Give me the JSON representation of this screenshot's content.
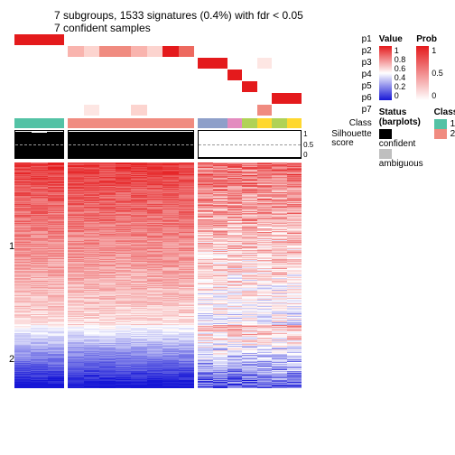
{
  "title_line1": "7 subgroups, 1533 signatures (0.4%) with fdr < 0.05",
  "title_line2": "7 confident samples",
  "group_widths": [
    55,
    140,
    115
  ],
  "group_cols": [
    3,
    8,
    7
  ],
  "p_rows": [
    {
      "label": "p1",
      "cells": [
        [
          "#e41a1c",
          "#e41a1c",
          "#e41a1c"
        ],
        [
          "#ffffff",
          "#ffffff",
          "#ffffff",
          "#ffffff",
          "#ffffff",
          "#ffffff",
          "#ffffff",
          "#ffffff"
        ],
        [
          "#ffffff",
          "#ffffff",
          "#ffffff",
          "#ffffff",
          "#ffffff",
          "#ffffff",
          "#ffffff"
        ]
      ]
    },
    {
      "label": "p2",
      "cells": [
        [
          "#ffffff",
          "#ffffff",
          "#ffffff"
        ],
        [
          "#f9b4ae",
          "#fcd4cf",
          "#f08b80",
          "#f08b80",
          "#f9b4ae",
          "#fcd4cf",
          "#e41a1c",
          "#ed695f"
        ],
        [
          "#ffffff",
          "#ffffff",
          "#ffffff",
          "#ffffff",
          "#ffffff",
          "#ffffff",
          "#ffffff"
        ]
      ]
    },
    {
      "label": "p3",
      "cells": [
        [
          "#ffffff",
          "#ffffff",
          "#ffffff"
        ],
        [
          "#ffffff",
          "#ffffff",
          "#ffffff",
          "#ffffff",
          "#ffffff",
          "#ffffff",
          "#ffffff",
          "#ffffff"
        ],
        [
          "#e41a1c",
          "#e41a1c",
          "#ffffff",
          "#ffffff",
          "#fde6e3",
          "#ffffff",
          "#ffffff"
        ]
      ]
    },
    {
      "label": "p4",
      "cells": [
        [
          "#ffffff",
          "#ffffff",
          "#ffffff"
        ],
        [
          "#ffffff",
          "#ffffff",
          "#ffffff",
          "#ffffff",
          "#ffffff",
          "#ffffff",
          "#ffffff",
          "#ffffff"
        ],
        [
          "#ffffff",
          "#ffffff",
          "#e41a1c",
          "#ffffff",
          "#ffffff",
          "#ffffff",
          "#ffffff"
        ]
      ]
    },
    {
      "label": "p5",
      "cells": [
        [
          "#ffffff",
          "#ffffff",
          "#ffffff"
        ],
        [
          "#ffffff",
          "#ffffff",
          "#ffffff",
          "#ffffff",
          "#ffffff",
          "#ffffff",
          "#ffffff",
          "#ffffff"
        ],
        [
          "#ffffff",
          "#ffffff",
          "#ffffff",
          "#e41a1c",
          "#ffffff",
          "#ffffff",
          "#ffffff"
        ]
      ]
    },
    {
      "label": "p6",
      "cells": [
        [
          "#ffffff",
          "#ffffff",
          "#ffffff"
        ],
        [
          "#ffffff",
          "#ffffff",
          "#ffffff",
          "#ffffff",
          "#ffffff",
          "#ffffff",
          "#ffffff",
          "#ffffff"
        ],
        [
          "#ffffff",
          "#ffffff",
          "#ffffff",
          "#ffffff",
          "#ffffff",
          "#e41a1c",
          "#e41a1c"
        ]
      ]
    },
    {
      "label": "p7",
      "cells": [
        [
          "#ffffff",
          "#ffffff",
          "#ffffff"
        ],
        [
          "#ffffff",
          "#fde6e3",
          "#ffffff",
          "#ffffff",
          "#fcd4cf",
          "#ffffff",
          "#ffffff",
          "#ffffff"
        ],
        [
          "#ffffff",
          "#ffffff",
          "#ffffff",
          "#ffffff",
          "#f08b80",
          "#ffffff",
          "#ffffff"
        ]
      ]
    }
  ],
  "class_colors": [
    [
      "#53c2a5",
      "#53c2a5",
      "#53c2a5"
    ],
    [
      "#f08b80",
      "#f08b80",
      "#f08b80",
      "#f08b80",
      "#f08b80",
      "#f08b80",
      "#f08b80",
      "#f08b80"
    ],
    [
      "#8e9fc9",
      "#8e9fc9",
      "#e38bbf",
      "#b0d256",
      "#ffd82f",
      "#b0d256",
      "#ffd82f"
    ]
  ],
  "class_label": "Class",
  "silhouette": {
    "label": "Silhouette score",
    "ticks": [
      "1",
      "0.5",
      "0"
    ],
    "groups": [
      [
        0.96,
        0.95,
        0.97
      ],
      [
        0.97,
        0.98,
        0.97,
        0.96,
        0.98,
        0.97,
        0.97,
        0.98
      ],
      [
        0.03,
        0.04,
        0.02,
        0.04,
        0.03,
        0.03,
        0.04
      ]
    ]
  },
  "heatmap": {
    "cluster1_lines": 180,
    "cluster2_lines": 70,
    "row_labels": [
      "1",
      "2"
    ]
  },
  "legends": {
    "value": {
      "title": "Value",
      "ticks": [
        "1",
        "0.8",
        "0.6",
        "0.4",
        "0.2",
        "0"
      ],
      "gradient": "linear-gradient(to bottom,#e41a1c 0%,#ffffff 50%,#1616d6 100%)"
    },
    "prob": {
      "title": "Prob",
      "ticks": [
        "1",
        "0.5",
        "0"
      ],
      "gradient": "linear-gradient(to bottom,#e41a1c 0%,#ffffff 100%)"
    },
    "class": {
      "title": "Class",
      "items": [
        {
          "color": "#53c2a5",
          "label": "1"
        },
        {
          "color": "#f08b80",
          "label": "2"
        }
      ]
    },
    "status": {
      "title": "Status (barplots)",
      "items": [
        {
          "color": "#000000",
          "label": "confident"
        },
        {
          "color": "#bfbfbf",
          "label": "ambiguous"
        }
      ]
    }
  },
  "palette": {
    "red": "#e41a1c",
    "white": "#ffffff",
    "blue": "#1616d6"
  }
}
